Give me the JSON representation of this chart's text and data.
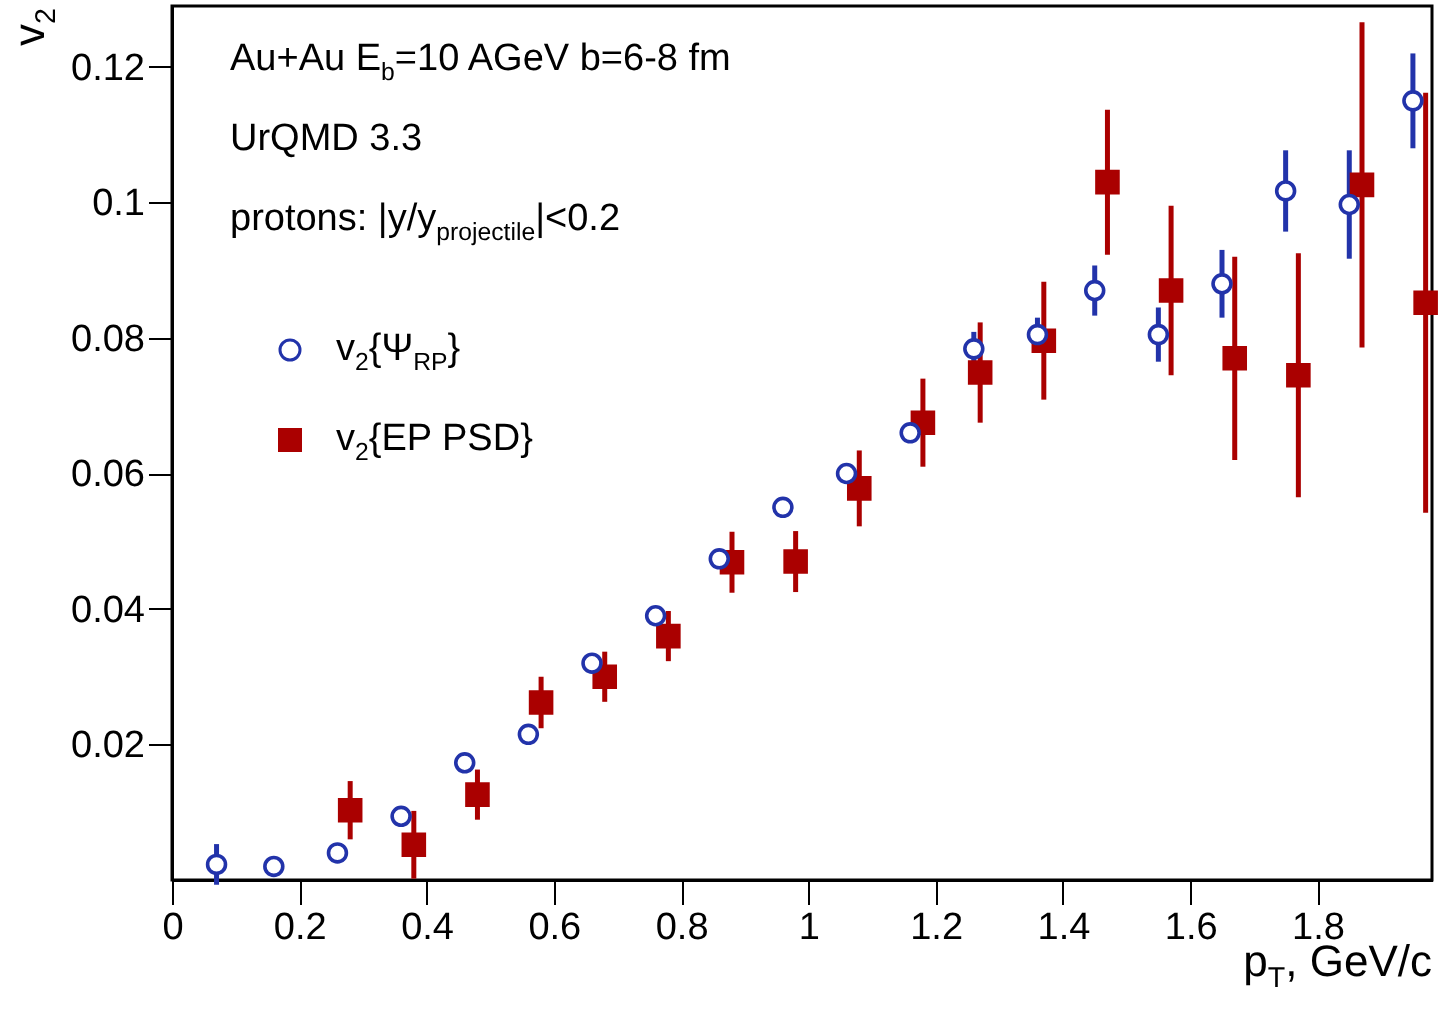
{
  "chart_data": {
    "type": "scatter",
    "xlabel": "p$_{T}$, GeV/c",
    "ylabel": "v$_{2}$",
    "annotations": [
      "Au+Au E$_{b}$=10 AGeV  b=6-8 fm",
      "UrQMD 3.3",
      "protons: |y/y$_{projectile}$|<0.2"
    ],
    "xlim": [
      0,
      1.98
    ],
    "ylim": [
      0,
      0.129
    ],
    "xticks": [
      0,
      0.2,
      0.4,
      0.6,
      0.8,
      1,
      1.2,
      1.4,
      1.6,
      1.8
    ],
    "yticks": [
      0.02,
      0.04,
      0.06,
      0.08,
      0.1,
      0.12
    ],
    "grid": false,
    "legend": "top left",
    "series": [
      {
        "name": "v$_{2}${Ψ$_{RP}$}",
        "color": "#2233aa",
        "marker": "circle",
        "x": [
          0.07,
          0.16,
          0.26,
          0.36,
          0.46,
          0.56,
          0.66,
          0.76,
          0.86,
          0.96,
          1.06,
          1.16,
          1.26,
          1.36,
          1.45,
          1.55,
          1.65,
          1.75,
          1.85,
          1.95
        ],
        "values": [
          0.0023,
          0.002,
          0.004,
          0.0094,
          0.0173,
          0.0215,
          0.032,
          0.039,
          0.0474,
          0.055,
          0.06,
          0.066,
          0.0784,
          0.0805,
          0.087,
          0.0805,
          0.088,
          0.1017,
          0.0997,
          0.115
        ],
        "errors": [
          0.003,
          null,
          null,
          null,
          null,
          null,
          null,
          null,
          null,
          null,
          null,
          null,
          0.0025,
          0.0025,
          0.0037,
          0.004,
          0.005,
          0.006,
          0.008,
          0.007
        ]
      },
      {
        "name": "v$_{2}${EP PSD}",
        "color": "#aa0000",
        "marker": "square",
        "x": [
          0.28,
          0.38,
          0.48,
          0.58,
          0.68,
          0.78,
          0.88,
          0.98,
          1.08,
          1.18,
          1.27,
          1.37,
          1.47,
          1.57,
          1.67,
          1.77,
          1.87,
          1.97
        ],
        "values": [
          0.0103,
          0.0052,
          0.0126,
          0.0262,
          0.03,
          0.036,
          0.0469,
          0.047,
          0.0578,
          0.0675,
          0.0749,
          0.0796,
          0.103,
          0.087,
          0.077,
          0.0745,
          0.1026,
          0.0852
        ],
        "errors": [
          0.0043,
          0.005,
          0.0037,
          0.0038,
          0.0037,
          0.0037,
          0.0045,
          0.0045,
          0.0056,
          0.0065,
          0.0074,
          0.0087,
          0.0107,
          0.0125,
          0.015,
          0.018,
          0.024,
          0.031
        ]
      }
    ]
  }
}
